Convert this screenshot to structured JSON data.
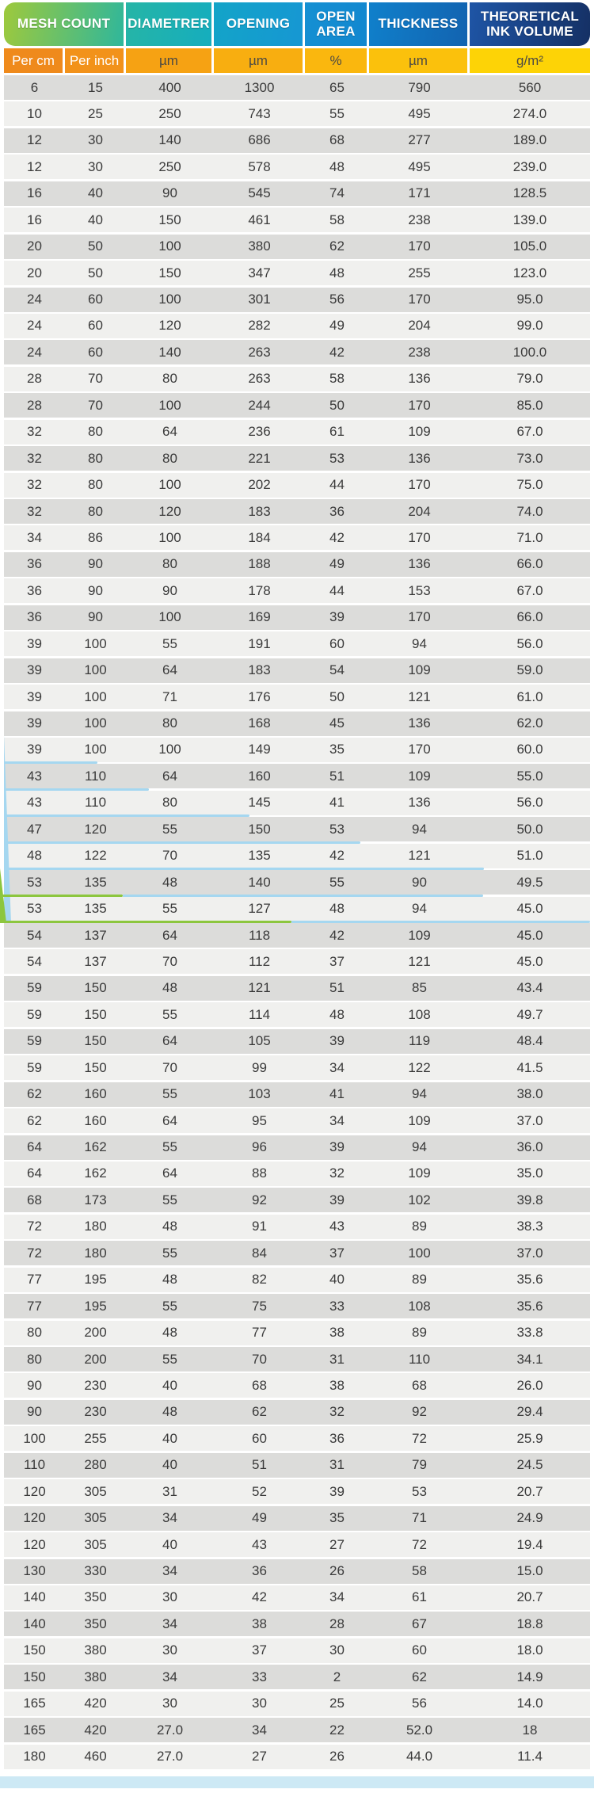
{
  "header": {
    "mesh_count": "MESH COUNT",
    "diametrer": "DIAMETRER",
    "opening": "OPENING",
    "open_area": "OPEN AREA",
    "thickness": "THICKNESS",
    "ink_volume": "THEORETICAL INK VOLUME"
  },
  "subheader": {
    "per_cm": "Per cm",
    "per_inch": "Per inch",
    "diametrer_unit": "µm",
    "opening_unit": "µm",
    "open_area_unit": "%",
    "thickness_unit": "µm",
    "ink_volume_unit": "g/m²"
  },
  "colors": {
    "header_gradient": [
      "#9ec93c",
      "#2fb79b",
      "#15adbe",
      "#1697d3",
      "#1287cf",
      "#1263b0",
      "#153064"
    ],
    "subheader_gradient": [
      "#ef8a1c",
      "#f2921a",
      "#f6a213",
      "#f8ae10",
      "#fab70e",
      "#fbc10c",
      "#fdd306"
    ],
    "row_dark": "#dcdcda",
    "row_light": "#f0f0ee",
    "row_text": "#3a3a3a",
    "watermark_blue": "#a5d7f0",
    "watermark_green": "#8cc63e",
    "bottom_bar": "#cde9f5"
  },
  "chart_data": {
    "type": "table",
    "column_groups": [
      "MESH COUNT",
      "DIAMETRER",
      "OPENING",
      "OPEN AREA",
      "THICKNESS",
      "THEORETICAL INK VOLUME"
    ],
    "columns": [
      "Per cm",
      "Per inch",
      "µm",
      "µm",
      "%",
      "µm",
      "g/m²"
    ],
    "rows": [
      [
        "6",
        "15",
        "400",
        "1300",
        "65",
        "790",
        "560"
      ],
      [
        "10",
        "25",
        "250",
        "743",
        "55",
        "495",
        "274.0"
      ],
      [
        "12",
        "30",
        "140",
        "686",
        "68",
        "277",
        "189.0"
      ],
      [
        "12",
        "30",
        "250",
        "578",
        "48",
        "495",
        "239.0"
      ],
      [
        "16",
        "40",
        "90",
        "545",
        "74",
        "171",
        "128.5"
      ],
      [
        "16",
        "40",
        "150",
        "461",
        "58",
        "238",
        "139.0"
      ],
      [
        "20",
        "50",
        "100",
        "380",
        "62",
        "170",
        "105.0"
      ],
      [
        "20",
        "50",
        "150",
        "347",
        "48",
        "255",
        "123.0"
      ],
      [
        "24",
        "60",
        "100",
        "301",
        "56",
        "170",
        "95.0"
      ],
      [
        "24",
        "60",
        "120",
        "282",
        "49",
        "204",
        "99.0"
      ],
      [
        "24",
        "60",
        "140",
        "263",
        "42",
        "238",
        "100.0"
      ],
      [
        "28",
        "70",
        "80",
        "263",
        "58",
        "136",
        "79.0"
      ],
      [
        "28",
        "70",
        "100",
        "244",
        "50",
        "170",
        "85.0"
      ],
      [
        "32",
        "80",
        "64",
        "236",
        "61",
        "109",
        "67.0"
      ],
      [
        "32",
        "80",
        "80",
        "221",
        "53",
        "136",
        "73.0"
      ],
      [
        "32",
        "80",
        "100",
        "202",
        "44",
        "170",
        "75.0"
      ],
      [
        "32",
        "80",
        "120",
        "183",
        "36",
        "204",
        "74.0"
      ],
      [
        "34",
        "86",
        "100",
        "184",
        "42",
        "170",
        "71.0"
      ],
      [
        "36",
        "90",
        "80",
        "188",
        "49",
        "136",
        "66.0"
      ],
      [
        "36",
        "90",
        "90",
        "178",
        "44",
        "153",
        "67.0"
      ],
      [
        "36",
        "90",
        "100",
        "169",
        "39",
        "170",
        "66.0"
      ],
      [
        "39",
        "100",
        "55",
        "191",
        "60",
        "94",
        "56.0"
      ],
      [
        "39",
        "100",
        "64",
        "183",
        "54",
        "109",
        "59.0"
      ],
      [
        "39",
        "100",
        "71",
        "176",
        "50",
        "121",
        "61.0"
      ],
      [
        "39",
        "100",
        "80",
        "168",
        "45",
        "136",
        "62.0"
      ],
      [
        "39",
        "100",
        "100",
        "149",
        "35",
        "170",
        "60.0"
      ],
      [
        "43",
        "110",
        "64",
        "160",
        "51",
        "109",
        "55.0"
      ],
      [
        "43",
        "110",
        "80",
        "145",
        "41",
        "136",
        "56.0"
      ],
      [
        "47",
        "120",
        "55",
        "150",
        "53",
        "94",
        "50.0"
      ],
      [
        "48",
        "122",
        "70",
        "135",
        "42",
        "121",
        "51.0"
      ],
      [
        "53",
        "135",
        "48",
        "140",
        "55",
        "90",
        "49.5"
      ],
      [
        "53",
        "135",
        "55",
        "127",
        "48",
        "94",
        "45.0"
      ],
      [
        "54",
        "137",
        "64",
        "118",
        "42",
        "109",
        "45.0"
      ],
      [
        "54",
        "137",
        "70",
        "112",
        "37",
        "121",
        "45.0"
      ],
      [
        "59",
        "150",
        "48",
        "121",
        "51",
        "85",
        "43.4"
      ],
      [
        "59",
        "150",
        "55",
        "114",
        "48",
        "108",
        "49.7"
      ],
      [
        "59",
        "150",
        "64",
        "105",
        "39",
        "119",
        "48.4"
      ],
      [
        "59",
        "150",
        "70",
        "99",
        "34",
        "122",
        "41.5"
      ],
      [
        "62",
        "160",
        "55",
        "103",
        "41",
        "94",
        "38.0"
      ],
      [
        "62",
        "160",
        "64",
        "95",
        "34",
        "109",
        "37.0"
      ],
      [
        "64",
        "162",
        "55",
        "96",
        "39",
        "94",
        "36.0"
      ],
      [
        "64",
        "162",
        "64",
        "88",
        "32",
        "109",
        "35.0"
      ],
      [
        "68",
        "173",
        "55",
        "92",
        "39",
        "102",
        "39.8"
      ],
      [
        "72",
        "180",
        "48",
        "91",
        "43",
        "89",
        "38.3"
      ],
      [
        "72",
        "180",
        "55",
        "84",
        "37",
        "100",
        "37.0"
      ],
      [
        "77",
        "195",
        "48",
        "82",
        "40",
        "89",
        "35.6"
      ],
      [
        "77",
        "195",
        "55",
        "75",
        "33",
        "108",
        "35.6"
      ],
      [
        "80",
        "200",
        "48",
        "77",
        "38",
        "89",
        "33.8"
      ],
      [
        "80",
        "200",
        "55",
        "70",
        "31",
        "110",
        "34.1"
      ],
      [
        "90",
        "230",
        "40",
        "68",
        "38",
        "68",
        "26.0"
      ],
      [
        "90",
        "230",
        "48",
        "62",
        "32",
        "92",
        "29.4"
      ],
      [
        "100",
        "255",
        "40",
        "60",
        "36",
        "72",
        "25.9"
      ],
      [
        "110",
        "280",
        "40",
        "51",
        "31",
        "79",
        "24.5"
      ],
      [
        "120",
        "305",
        "31",
        "52",
        "39",
        "53",
        "20.7"
      ],
      [
        "120",
        "305",
        "34",
        "49",
        "35",
        "71",
        "24.9"
      ],
      [
        "120",
        "305",
        "40",
        "43",
        "27",
        "72",
        "19.4"
      ],
      [
        "130",
        "330",
        "34",
        "36",
        "26",
        "58",
        "15.0"
      ],
      [
        "140",
        "350",
        "30",
        "42",
        "34",
        "61",
        "20.7"
      ],
      [
        "140",
        "350",
        "34",
        "38",
        "28",
        "67",
        "18.8"
      ],
      [
        "150",
        "380",
        "30",
        "37",
        "30",
        "60",
        "18.0"
      ],
      [
        "150",
        "380",
        "34",
        "33",
        "2",
        "62",
        "14.9"
      ],
      [
        "165",
        "420",
        "30",
        "30",
        "25",
        "56",
        "14.0"
      ],
      [
        "165",
        "420",
        "27.0",
        "34",
        "22",
        "52.0",
        "18"
      ],
      [
        "180",
        "460",
        "27.0",
        "27",
        "26",
        "44.0",
        "11.4"
      ]
    ]
  }
}
